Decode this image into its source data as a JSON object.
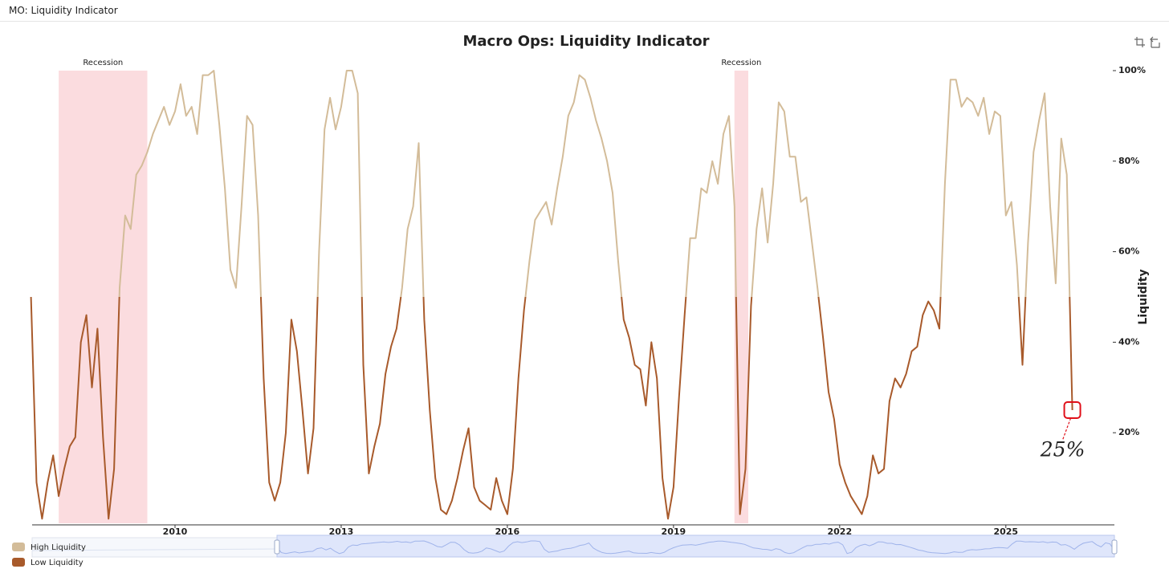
{
  "page_title": "MO: Liquidity Indicator",
  "chart_data": {
    "type": "line",
    "title": "Macro Ops: Liquidity Indicator",
    "y_label": "Liquidity",
    "x": [
      2007.4,
      2007.5,
      2007.6,
      2007.7,
      2007.8,
      2007.9,
      2008.0,
      2008.1,
      2008.2,
      2008.3,
      2008.4,
      2008.5,
      2008.6,
      2008.7,
      2008.8,
      2008.9,
      2009.0,
      2009.1,
      2009.2,
      2009.3,
      2009.4,
      2009.5,
      2009.6,
      2009.7,
      2009.8,
      2009.9,
      2010.0,
      2010.1,
      2010.2,
      2010.3,
      2010.4,
      2010.5,
      2010.6,
      2010.7,
      2010.8,
      2010.9,
      2011.0,
      2011.1,
      2011.2,
      2011.3,
      2011.4,
      2011.5,
      2011.6,
      2011.7,
      2011.8,
      2011.9,
      2012.0,
      2012.1,
      2012.2,
      2012.3,
      2012.4,
      2012.5,
      2012.6,
      2012.7,
      2012.8,
      2012.9,
      2013.0,
      2013.1,
      2013.2,
      2013.3,
      2013.4,
      2013.5,
      2013.6,
      2013.7,
      2013.8,
      2013.9,
      2014.0,
      2014.1,
      2014.2,
      2014.3,
      2014.4,
      2014.5,
      2014.6,
      2014.7,
      2014.8,
      2014.9,
      2015.0,
      2015.1,
      2015.2,
      2015.3,
      2015.4,
      2015.5,
      2015.6,
      2015.7,
      2015.8,
      2015.9,
      2016.0,
      2016.1,
      2016.2,
      2016.3,
      2016.4,
      2016.5,
      2016.6,
      2016.7,
      2016.8,
      2016.9,
      2017.0,
      2017.1,
      2017.2,
      2017.3,
      2017.4,
      2017.5,
      2017.6,
      2017.7,
      2017.8,
      2017.9,
      2018.0,
      2018.1,
      2018.2,
      2018.3,
      2018.4,
      2018.5,
      2018.6,
      2018.7,
      2018.8,
      2018.9,
      2019.0,
      2019.1,
      2019.2,
      2019.3,
      2019.4,
      2019.5,
      2019.6,
      2019.7,
      2019.8,
      2019.9,
      2020.0,
      2020.1,
      2020.2,
      2020.3,
      2020.4,
      2020.5,
      2020.6,
      2020.7,
      2020.8,
      2020.9,
      2021.0,
      2021.1,
      2021.2,
      2021.3,
      2021.4,
      2021.5,
      2021.6,
      2021.7,
      2021.8,
      2021.9,
      2022.0,
      2022.1,
      2022.2,
      2022.3,
      2022.4,
      2022.5,
      2022.6,
      2022.7,
      2022.8,
      2022.9,
      2023.0,
      2023.1,
      2023.2,
      2023.3,
      2023.4,
      2023.5,
      2023.6,
      2023.7,
      2023.8,
      2023.9,
      2024.0,
      2024.1,
      2024.2,
      2024.3,
      2024.4,
      2024.5,
      2024.6,
      2024.7,
      2024.8,
      2024.9,
      2025.0,
      2025.1,
      2025.2,
      2025.3,
      2025.4,
      2025.5,
      2025.6,
      2025.7,
      2025.8,
      2025.9,
      2026.0,
      2026.1,
      2026.2
    ],
    "values": [
      50,
      9,
      1,
      9,
      15,
      6,
      12,
      17,
      19,
      40,
      46,
      30,
      43,
      19,
      1,
      12,
      52,
      68,
      65,
      77,
      79,
      82,
      86,
      89,
      92,
      88,
      91,
      97,
      90,
      92,
      86,
      99,
      99,
      100,
      88,
      74,
      56,
      52,
      70,
      90,
      88,
      68,
      32,
      9,
      5,
      9,
      20,
      45,
      38,
      25,
      11,
      21,
      60,
      87,
      94,
      87,
      92,
      100,
      100,
      95,
      35,
      11,
      17,
      22,
      33,
      39,
      43,
      52,
      65,
      70,
      84,
      45,
      25,
      10,
      3,
      2,
      5,
      10,
      16,
      21,
      8,
      5,
      4,
      3,
      10,
      5,
      2,
      12,
      32,
      47,
      58,
      67,
      69,
      71,
      66,
      74,
      81,
      90,
      93,
      99,
      98,
      94,
      89,
      85,
      80,
      73,
      58,
      45,
      41,
      35,
      34,
      26,
      40,
      32,
      10,
      1,
      8,
      28,
      46,
      63,
      63,
      74,
      73,
      80,
      75,
      86,
      90,
      70,
      2,
      12,
      48,
      65,
      74,
      62,
      75,
      93,
      91,
      81,
      81,
      71,
      72,
      62,
      52,
      41,
      29,
      23,
      13,
      9,
      6,
      4,
      2,
      6,
      15,
      11,
      12,
      27,
      32,
      30,
      33,
      38,
      39,
      46,
      49,
      47,
      43,
      75,
      98,
      98,
      92,
      94,
      93,
      90,
      94,
      86,
      91,
      90,
      68,
      71,
      57,
      35,
      62,
      82,
      89,
      95,
      70,
      53,
      85,
      77,
      25
    ],
    "threshold": 50,
    "legend": [
      {
        "name": "High Liquidity",
        "color": "#d3bc99"
      },
      {
        "name": "Low Liquidity",
        "color": "#a85a2b"
      }
    ],
    "recessions": [
      {
        "label": "Recession",
        "start": 2007.9,
        "end": 2009.5
      },
      {
        "label": "Recession",
        "start": 2020.1,
        "end": 2020.35
      }
    ],
    "recession_color": "#fbdcdf",
    "annotation": {
      "text": "25%",
      "value": 25,
      "color": "#e0101a"
    },
    "xlim": [
      2007.42,
      2026.96
    ],
    "xticks": [
      2010,
      2013,
      2016,
      2019,
      2022,
      2025
    ],
    "ylim": [
      0,
      100
    ],
    "yticks": [
      {
        "value": 20,
        "label": "20%"
      },
      {
        "value": 40,
        "label": "40%"
      },
      {
        "value": 60,
        "label": "60%"
      },
      {
        "value": 80,
        "label": "80%"
      },
      {
        "value": 100,
        "label": "100%"
      }
    ]
  }
}
